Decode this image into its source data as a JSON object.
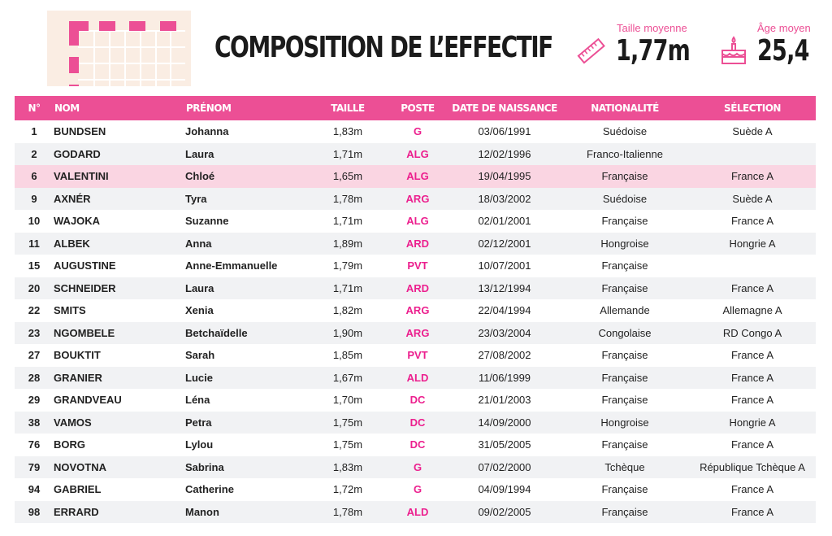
{
  "title": "COMPOSITION DE L’EFFECTIF",
  "stats": [
    {
      "label": "Taille moyenne",
      "value": "1,77m",
      "icon": "ruler-icon"
    },
    {
      "label": "Âge moyen",
      "value": "25,4",
      "icon": "cake-icon"
    }
  ],
  "colors": {
    "accent": "#ec4f95",
    "highlight": "#fad5e2"
  },
  "columns": [
    "N°",
    "NOM",
    "PRÉNOM",
    "TAILLE",
    "POSTE",
    "DATE DE NAISSANCE",
    "NATIONALITÉ",
    "SÉLECTION"
  ],
  "rows": [
    [
      "1",
      "BUNDSEN",
      "Johanna",
      "1,83m",
      "G",
      "03/06/1991",
      "Suédoise",
      "Suède A"
    ],
    [
      "2",
      "GODARD",
      "Laura",
      "1,71m",
      "ALG",
      "12/02/1996",
      "Franco-Italienne",
      ""
    ],
    [
      "6",
      "VALENTINI",
      "Chloé",
      "1,65m",
      "ALG",
      "19/04/1995",
      "Française",
      "France A"
    ],
    [
      "9",
      "AXNÉR",
      "Tyra",
      "1,78m",
      "ARG",
      "18/03/2002",
      "Suédoise",
      "Suède A"
    ],
    [
      "10",
      "WAJOKA",
      "Suzanne",
      "1,71m",
      "ALG",
      "02/01/2001",
      "Française",
      "France A"
    ],
    [
      "11",
      "ALBEK",
      "Anna",
      "1,89m",
      "ARD",
      "02/12/2001",
      "Hongroise",
      "Hongrie A"
    ],
    [
      "15",
      "AUGUSTINE",
      "Anne-Emmanuelle",
      "1,79m",
      "PVT",
      "10/07/2001",
      "Française",
      ""
    ],
    [
      "20",
      "SCHNEIDER",
      "Laura",
      "1,71m",
      "ARD",
      "13/12/1994",
      "Française",
      "France A"
    ],
    [
      "22",
      "SMITS",
      "Xenia",
      "1,82m",
      "ARG",
      "22/04/1994",
      "Allemande",
      "Allemagne A"
    ],
    [
      "23",
      "NGOMBELE",
      "Betchaïdelle",
      "1,90m",
      "ARG",
      "23/03/2004",
      "Congolaise",
      "RD Congo A"
    ],
    [
      "27",
      "BOUKTIT",
      "Sarah",
      "1,85m",
      "PVT",
      "27/08/2002",
      "Française",
      "France A"
    ],
    [
      "28",
      "GRANIER",
      "Lucie",
      "1,67m",
      "ALD",
      "11/06/1999",
      "Française",
      "France A"
    ],
    [
      "29",
      "GRANDVEAU",
      "Léna",
      "1,70m",
      "DC",
      "21/01/2003",
      "Française",
      "France A"
    ],
    [
      "38",
      "VAMOS",
      "Petra",
      "1,75m",
      "DC",
      "14/09/2000",
      "Hongroise",
      "Hongrie A"
    ],
    [
      "76",
      "BORG",
      "Lylou",
      "1,75m",
      "DC",
      "31/05/2005",
      "Française",
      "France A"
    ],
    [
      "79",
      "NOVOTNA",
      "Sabrina",
      "1,83m",
      "G",
      "07/02/2000",
      "Tchèque",
      "République Tchèque A"
    ],
    [
      "94",
      "GABRIEL",
      "Catherine",
      "1,72m",
      "G",
      "04/09/1994",
      "Française",
      "France A"
    ],
    [
      "98",
      "ERRARD",
      "Manon",
      "1,78m",
      "ALD",
      "09/02/2005",
      "Française",
      "France A"
    ]
  ],
  "highlighted_row": 2
}
